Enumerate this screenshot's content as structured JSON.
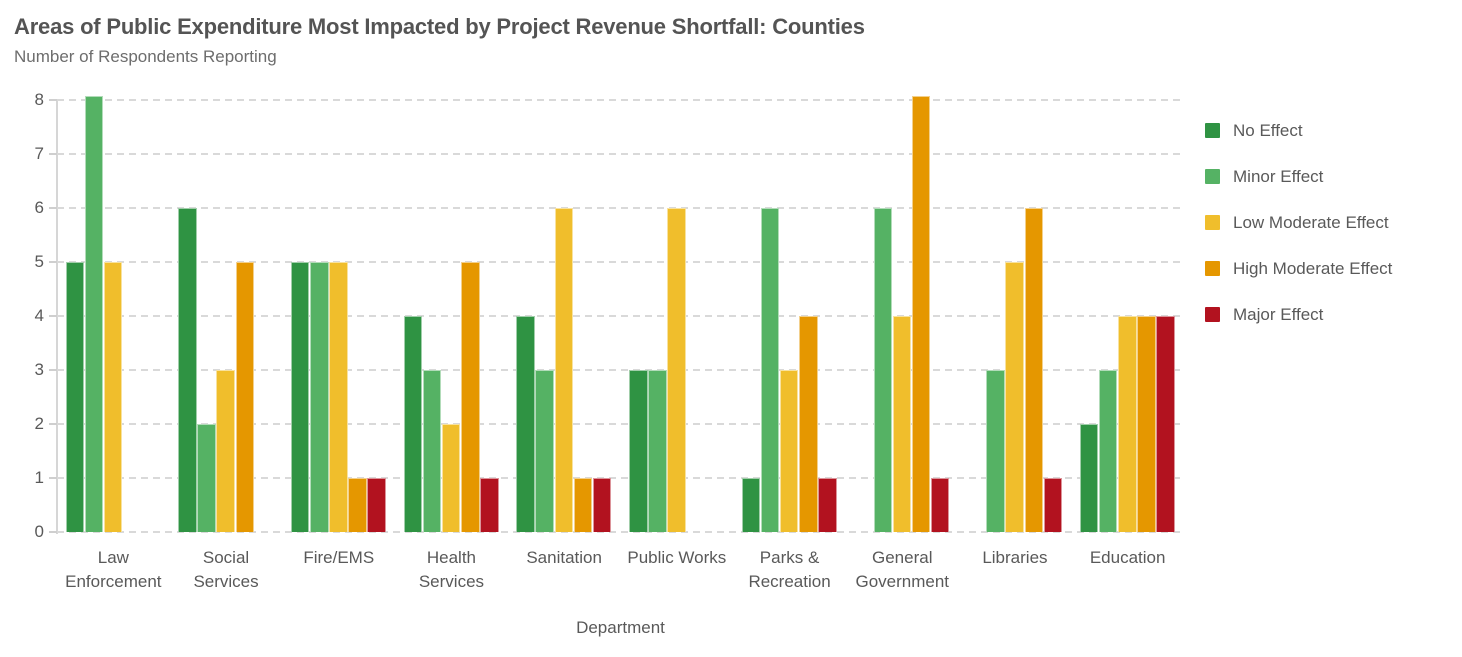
{
  "chart_data": {
    "type": "bar",
    "title": "Areas of Public Expenditure Most Impacted by Project Revenue Shortfall: Counties",
    "subtitle": "Number of Respondents Reporting",
    "xlabel": "Department",
    "ylabel": "",
    "ylim": [
      0,
      8
    ],
    "yticks": [
      0,
      1,
      2,
      3,
      4,
      5,
      6,
      7,
      8
    ],
    "grid": "horizontal-dashed",
    "legend_position": "right",
    "categories": [
      "Law Enforcement",
      "Social Services",
      "Fire/EMS",
      "Health Services",
      "Sanitation",
      "Public Works",
      "Parks & Recreation",
      "General Government",
      "Libraries",
      "Education"
    ],
    "series": [
      {
        "name": "No Effect",
        "color": "#2f9343",
        "values": [
          5,
          6,
          5,
          4,
          4,
          3,
          1,
          0,
          0,
          2
        ]
      },
      {
        "name": "Minor Effect",
        "color": "#55b264",
        "values": [
          8,
          2,
          5,
          3,
          3,
          3,
          6,
          6,
          3,
          3
        ]
      },
      {
        "name": "Low Moderate Effect",
        "color": "#f0be2c",
        "values": [
          5,
          3,
          5,
          2,
          6,
          6,
          3,
          4,
          5,
          4
        ]
      },
      {
        "name": "High Moderate Effect",
        "color": "#e59700",
        "values": [
          0,
          5,
          1,
          5,
          1,
          0,
          4,
          8,
          6,
          4
        ]
      },
      {
        "name": "Major Effect",
        "color": "#b2121f",
        "values": [
          0,
          0,
          1,
          1,
          1,
          0,
          1,
          1,
          1,
          4
        ]
      }
    ],
    "text_colors": {
      "title": "#545454",
      "subtitle": "#6d6d6d",
      "axis": "#595959"
    }
  }
}
